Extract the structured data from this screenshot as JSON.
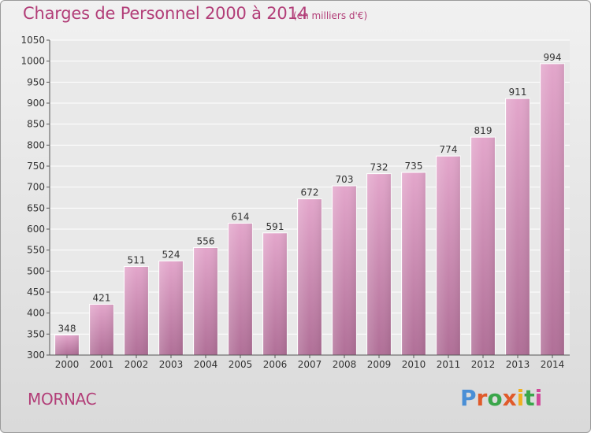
{
  "header": {
    "title": "Charges de Personnel 2000 à 2014",
    "subtitle": "(en milliers d'€)"
  },
  "footer": {
    "commune": "MORNAC",
    "logo_text": "Proxiti"
  },
  "colors": {
    "title": "#b23e78",
    "bar_top": "#e3a6cb",
    "bar_bottom": "#b06f97",
    "logo_letters": [
      "#4a8fd6",
      "#e05a2a",
      "#3aa64a",
      "#e05a2a",
      "#f0b020",
      "#3aa64a",
      "#d04a9a"
    ]
  },
  "chart_data": {
    "type": "bar",
    "title": "Charges de Personnel 2000 à 2014",
    "subtitle": "(en milliers d'€)",
    "categories": [
      "2000",
      "2001",
      "2002",
      "2003",
      "2004",
      "2005",
      "2006",
      "2007",
      "2008",
      "2009",
      "2010",
      "2011",
      "2012",
      "2013",
      "2014"
    ],
    "values": [
      348,
      421,
      511,
      524,
      556,
      614,
      591,
      672,
      703,
      732,
      735,
      774,
      819,
      911,
      994
    ],
    "ylim": [
      300,
      1050
    ],
    "yticks": [
      300,
      350,
      400,
      450,
      500,
      550,
      600,
      650,
      700,
      750,
      800,
      850,
      900,
      950,
      1000,
      1050
    ],
    "grid": true,
    "xlabel": "",
    "ylabel": ""
  }
}
